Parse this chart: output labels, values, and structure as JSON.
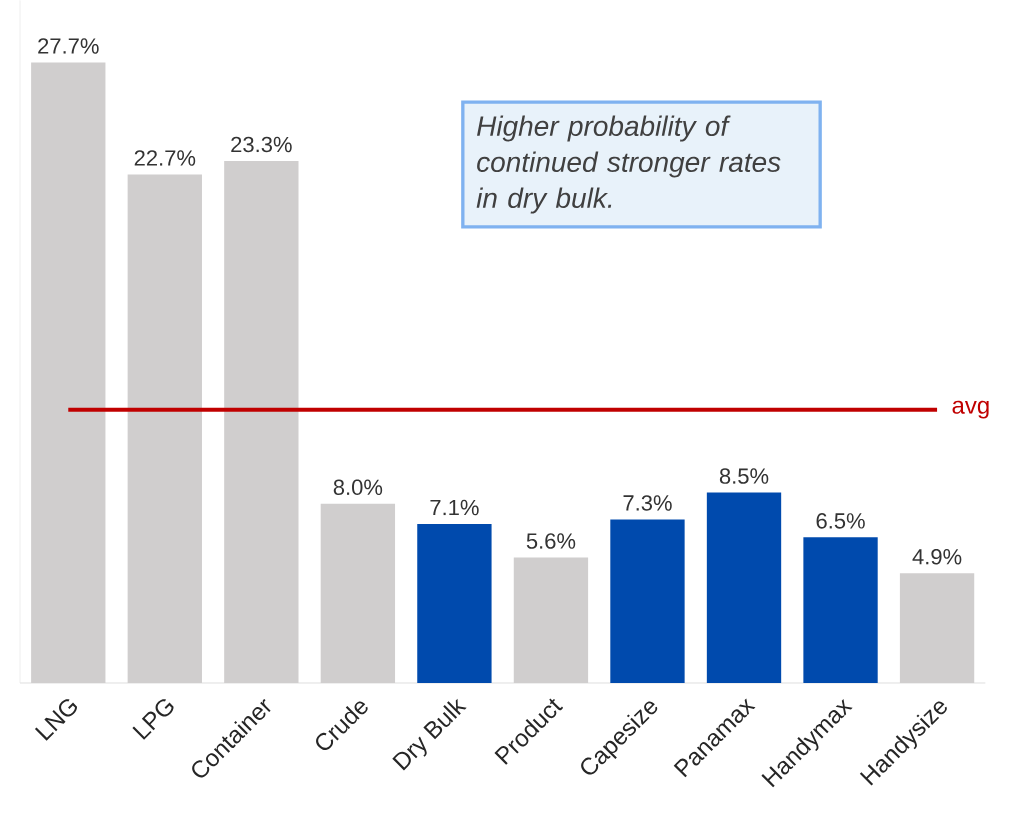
{
  "chart_data": {
    "type": "bar",
    "categories": [
      "LNG",
      "LPG",
      "Container",
      "Crude",
      "Dry Bulk",
      "Product",
      "Capesize",
      "Panamax",
      "Handymax",
      "Handysize"
    ],
    "values": [
      27.7,
      22.7,
      23.3,
      8.0,
      7.1,
      5.6,
      7.3,
      8.5,
      6.5,
      4.9
    ],
    "value_labels": [
      "27.7%",
      "22.7%",
      "23.3%",
      "8.0%",
      "7.1%",
      "5.6%",
      "7.3%",
      "8.5%",
      "6.5%",
      "4.9%"
    ],
    "colors": [
      "#d0cece",
      "#d0cece",
      "#d0cece",
      "#d0cece",
      "#004aad",
      "#d0cece",
      "#004aad",
      "#004aad",
      "#004aad",
      "#d0cece"
    ],
    "tick_labels": "x",
    "ref_lines": [
      {
        "axis": "y",
        "value": 12.2,
        "label": "avg",
        "color": "#c00000"
      }
    ],
    "annotations": [
      "Higher probability of continued stronger rates in dry bulk."
    ]
  }
}
